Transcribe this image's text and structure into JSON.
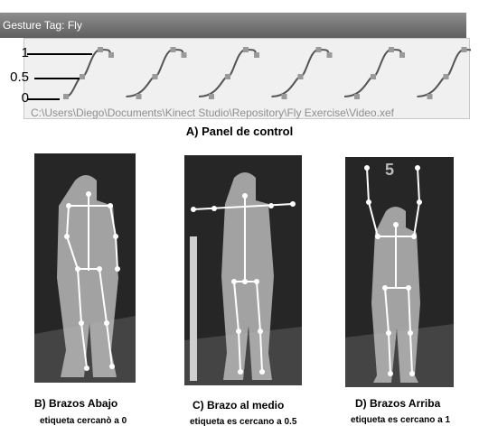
{
  "header": {
    "gesture_tag": "Gesture Tag: Fly"
  },
  "scale": {
    "labels": [
      "1",
      "0.5",
      "0"
    ]
  },
  "file_path": "C:\\Users\\Diego\\Documents\\Kinect Studio\\Repository\\Fly Exercise\\Video.xef",
  "panel_caption": "A) Panel de control",
  "frames": [
    {
      "title": "B) Brazos Abajo",
      "subtitle": "etiqueta  cercanò a 0"
    },
    {
      "title": "C) Brazo al medio",
      "subtitle": "etiqueta es cercano a 0.5"
    },
    {
      "title": "D) Brazos Arriba",
      "subtitle": "etiqueta es cercano a 1",
      "overlay_digit": "5"
    }
  ],
  "colors": {
    "tag_bar": "#6f6f6f",
    "panel_bg": "#f0f0f0",
    "curve": "#555555",
    "marker": "#9a9a9a"
  }
}
